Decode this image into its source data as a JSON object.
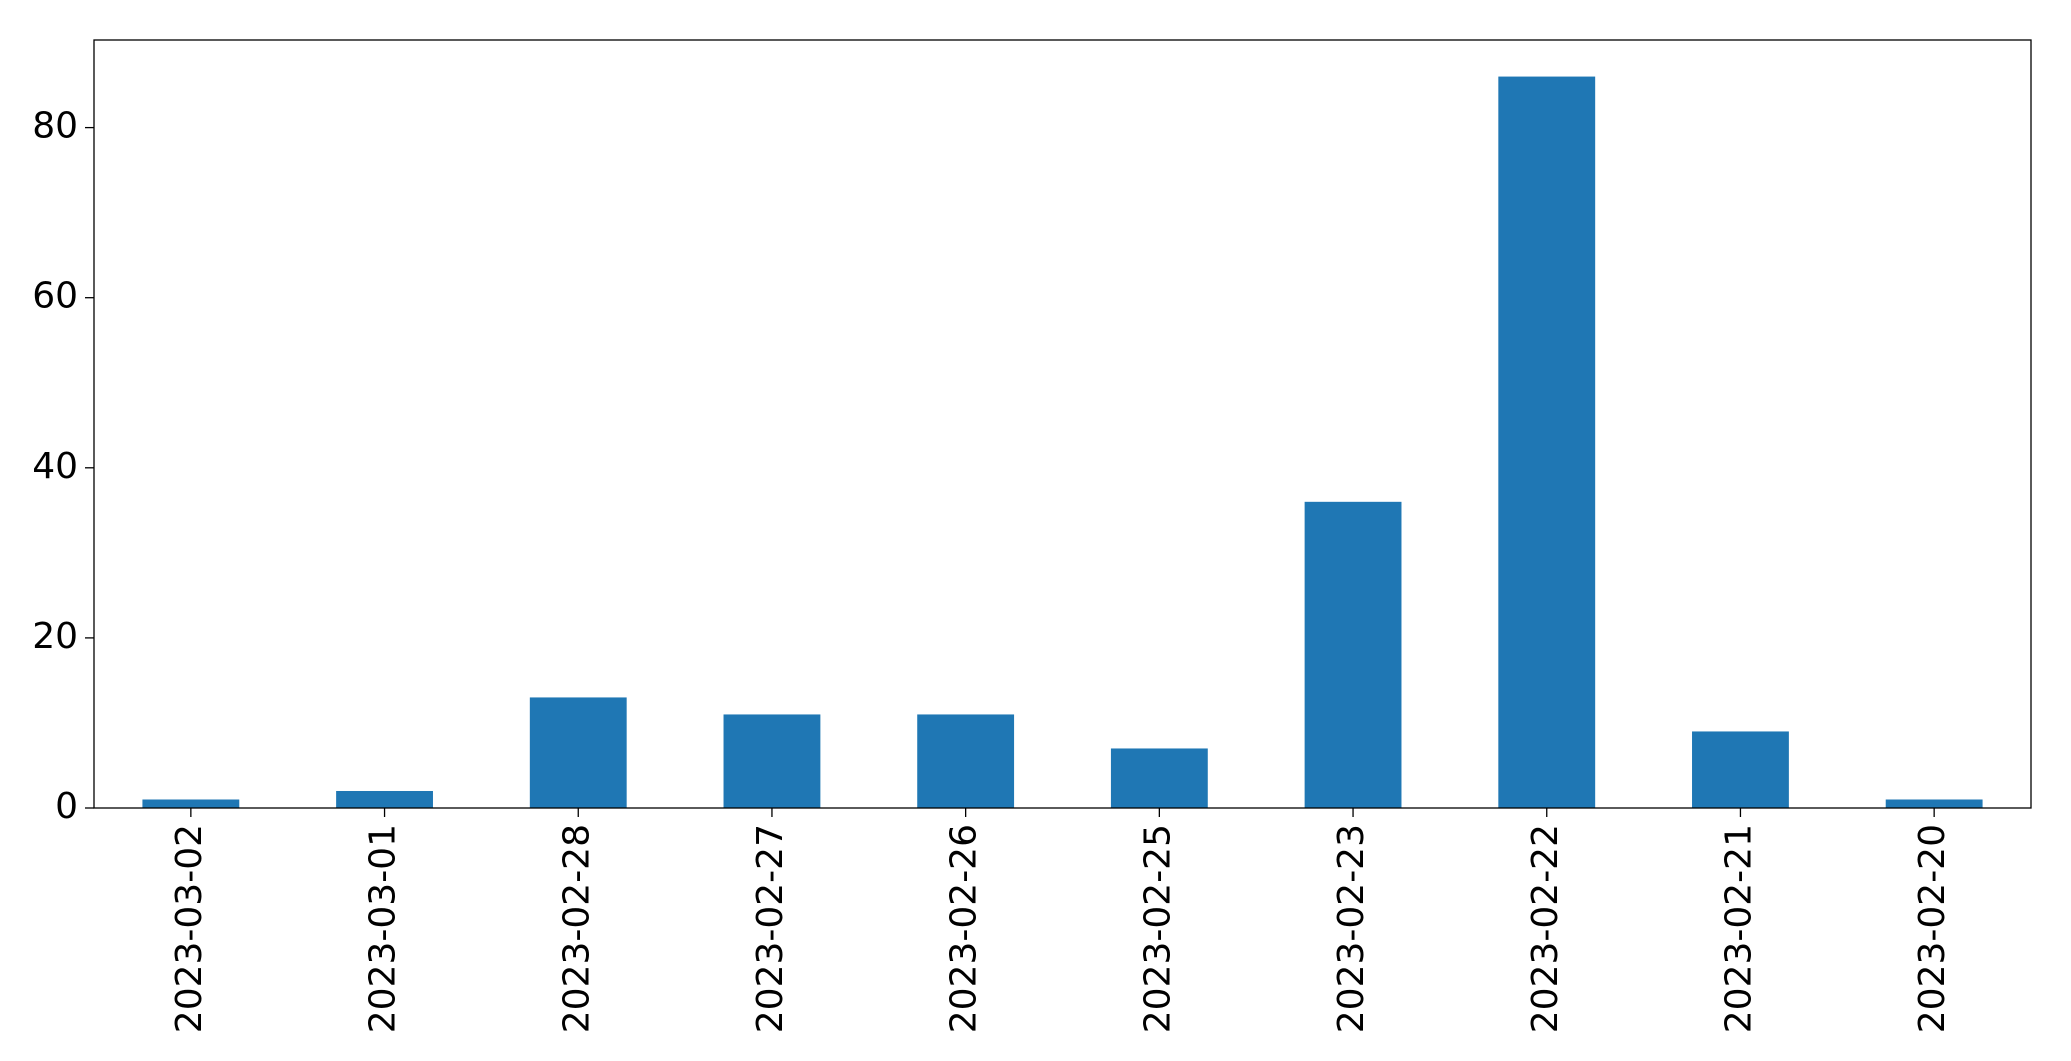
{
  "chart_data": {
    "type": "bar",
    "categories": [
      "2023-03-02",
      "2023-03-01",
      "2023-02-28",
      "2023-02-27",
      "2023-02-26",
      "2023-02-25",
      "2023-02-23",
      "2023-02-22",
      "2023-02-21",
      "2023-02-20"
    ],
    "values": [
      1,
      2,
      13,
      11,
      11,
      7,
      36,
      86,
      9,
      1
    ],
    "color": "#1f77b4",
    "ylim": [
      0,
      90.3
    ],
    "yticks": [
      0,
      20,
      40,
      60,
      80
    ],
    "grid": false
  }
}
